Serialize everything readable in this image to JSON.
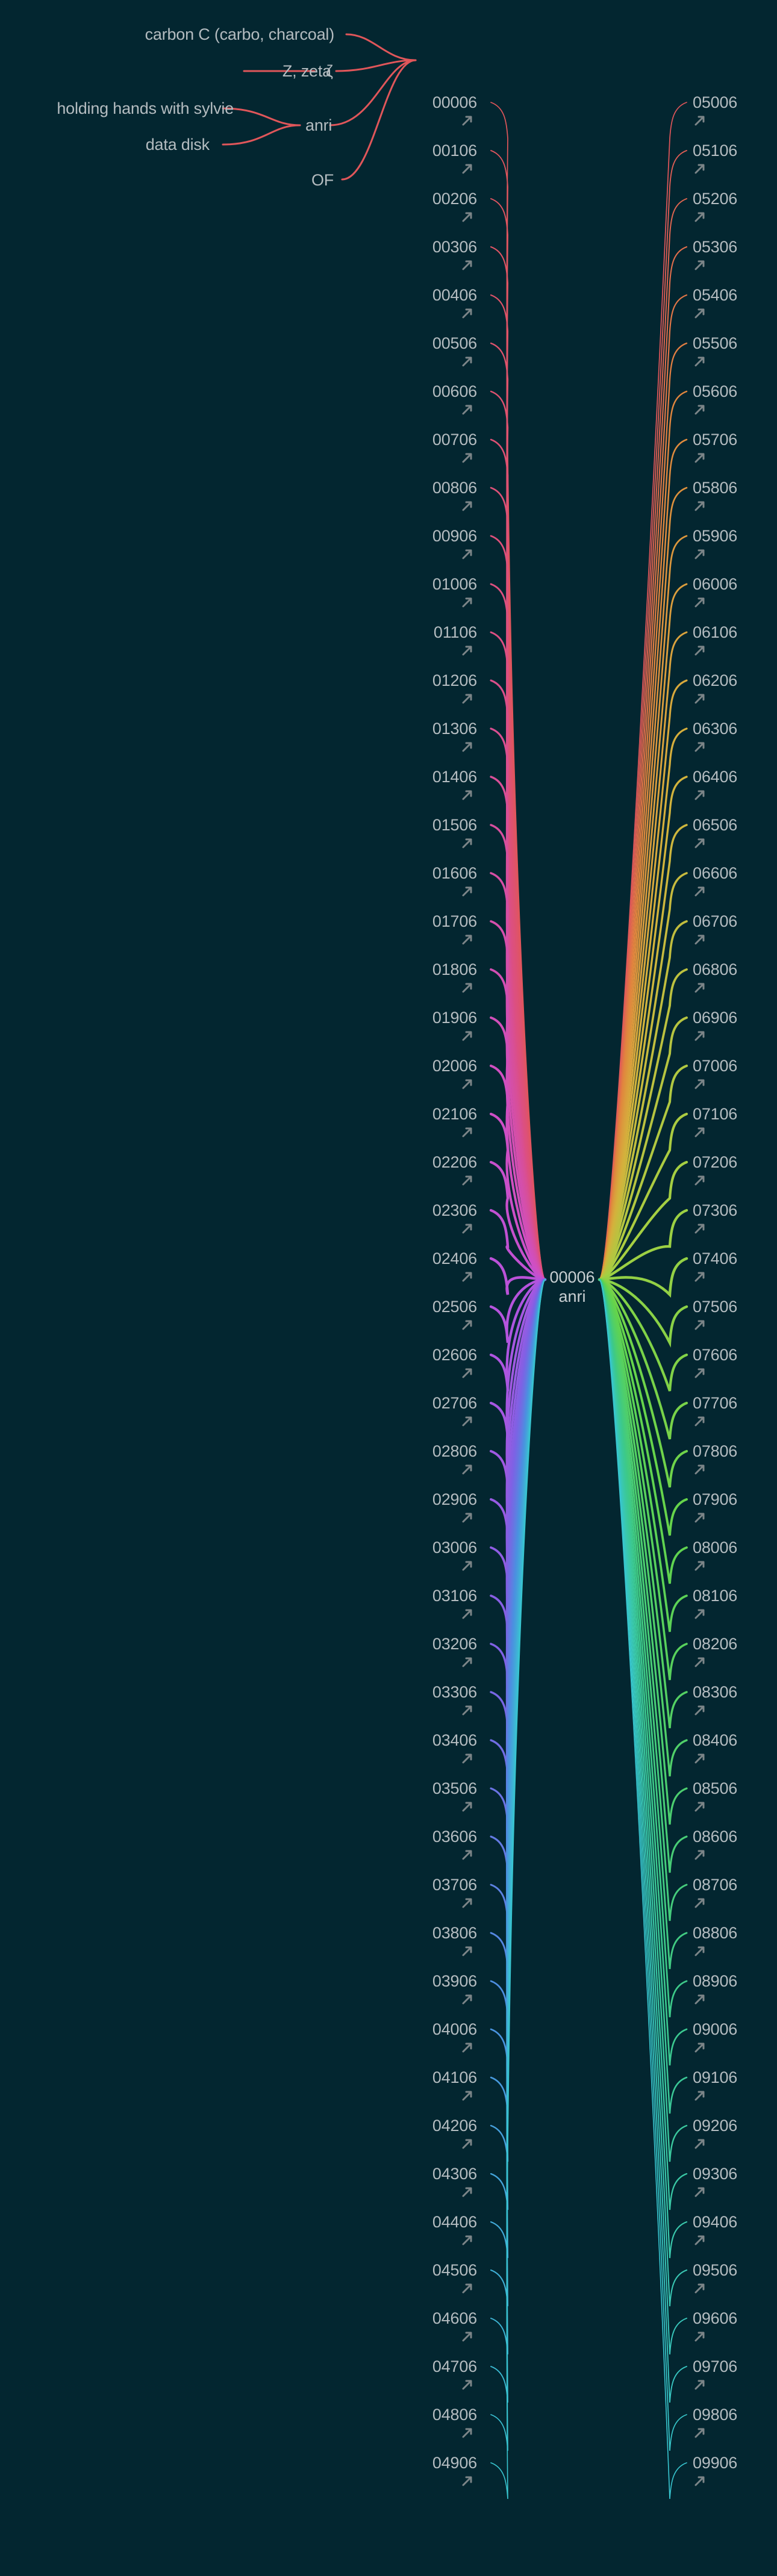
{
  "center": {
    "id": "00006",
    "name": "anri"
  },
  "left_nodes": [
    "00006",
    "00106",
    "00206",
    "00306",
    "00406",
    "00506",
    "00606",
    "00706",
    "00806",
    "00906",
    "01006",
    "01106",
    "01206",
    "01306",
    "01406",
    "01506",
    "01606",
    "01706",
    "01806",
    "01906",
    "02006",
    "02106",
    "02206",
    "02306",
    "02406",
    "02506",
    "02606",
    "02706",
    "02806",
    "02906",
    "03006",
    "03106",
    "03206",
    "03306",
    "03406",
    "03506",
    "03606",
    "03706",
    "03806",
    "03906",
    "04006",
    "04106",
    "04206",
    "04306",
    "04406",
    "04506",
    "04606",
    "04706",
    "04806",
    "04906"
  ],
  "right_nodes": [
    "05006",
    "05106",
    "05206",
    "05306",
    "05406",
    "05506",
    "05606",
    "05706",
    "05806",
    "05906",
    "06006",
    "06106",
    "06206",
    "06306",
    "06406",
    "06506",
    "06606",
    "06706",
    "06806",
    "06906",
    "07006",
    "07106",
    "07206",
    "07306",
    "07406",
    "07506",
    "07606",
    "07706",
    "07806",
    "07906",
    "08006",
    "08106",
    "08206",
    "08306",
    "08406",
    "08506",
    "08606",
    "08706",
    "08806",
    "08906",
    "09006",
    "09106",
    "09206",
    "09306",
    "09406",
    "09506",
    "09606",
    "09706",
    "09806",
    "09906"
  ],
  "branch": {
    "root": "00006",
    "children": [
      {
        "label": "carbon C (carbo, charcoal)"
      },
      {
        "label": "ζ",
        "children": [
          {
            "label": "Z, zeta"
          }
        ]
      },
      {
        "label": "anri",
        "children": [
          {
            "label": "holding hands with sylvie"
          },
          {
            "label": "data disk"
          }
        ]
      },
      {
        "label": "OF"
      }
    ]
  },
  "colors": {
    "background": "#032630",
    "text": "#b4bcc0",
    "icon": "#7c8588",
    "branch_red": "#e0565a"
  },
  "icon_name": "link-arrow-icon"
}
